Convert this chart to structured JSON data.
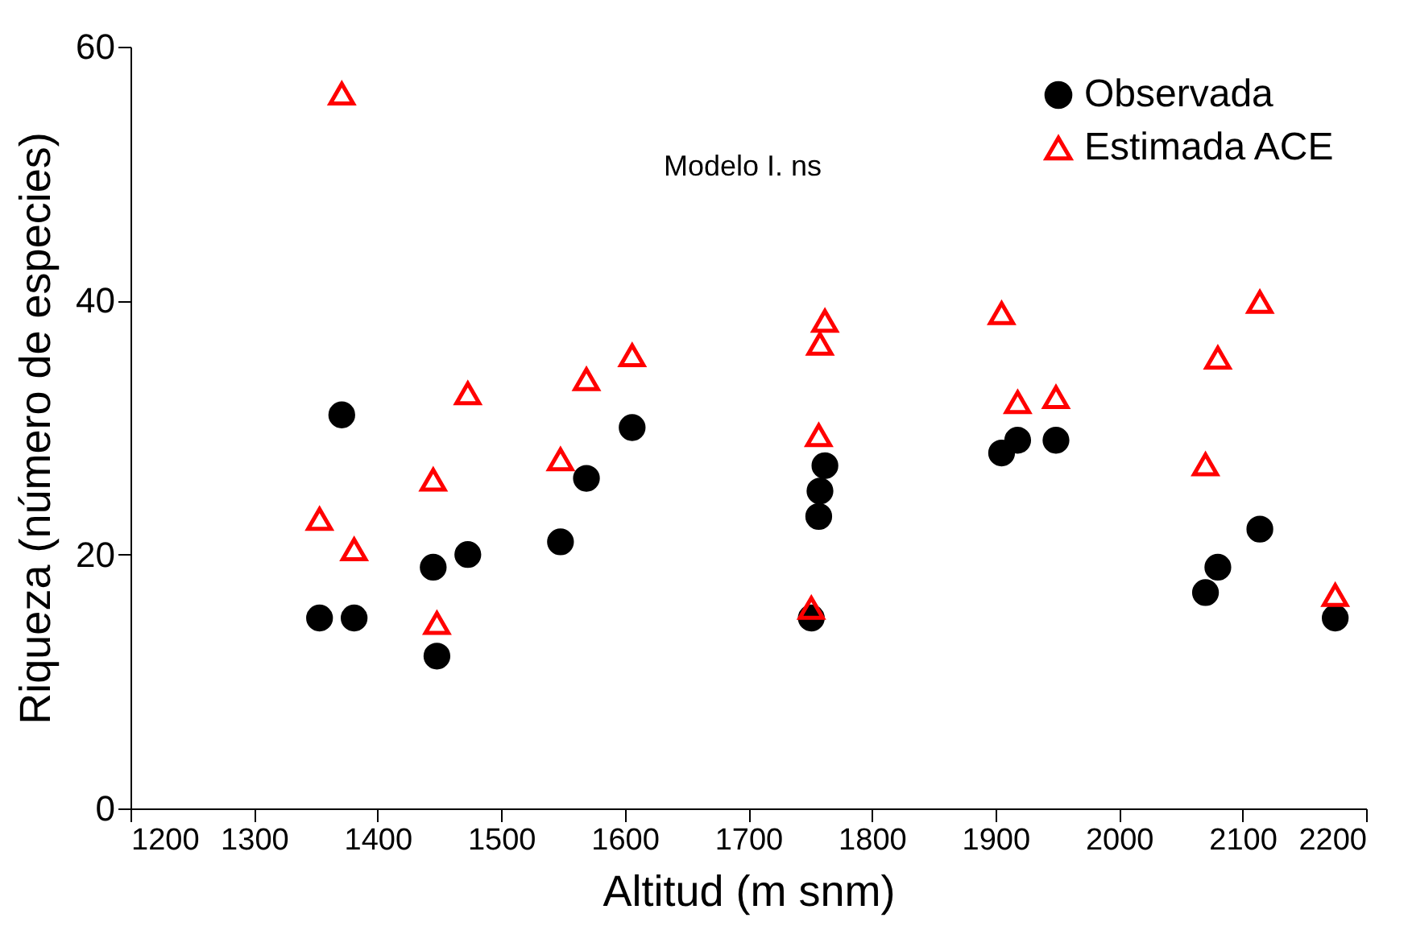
{
  "chart_data": {
    "type": "scatter",
    "xlabel": "Altitud (m snm)",
    "ylabel": "Riqueza (número de especies)",
    "annotations": [
      "Modelo I. ns"
    ],
    "series": [
      {
        "name": "Observada",
        "color": "#000000",
        "marker": "circle",
        "x": [
          1353,
          1371,
          1381,
          1445,
          1448,
          1473,
          1548,
          1569,
          1606,
          1751,
          1757,
          1758,
          1762,
          1905,
          1918,
          1949,
          2070,
          2080,
          2114,
          2175
        ],
        "values": [
          15,
          31,
          15,
          19,
          12,
          20,
          21,
          26,
          30,
          15,
          23,
          25,
          27,
          28,
          29,
          29,
          17,
          19,
          22,
          15
        ]
      },
      {
        "name": "Estimada ACE",
        "color": "#ff0000",
        "marker": "triangle",
        "x": [
          1353,
          1371,
          1381,
          1445,
          1448,
          1473,
          1548,
          1569,
          1606,
          1751,
          1757,
          1758,
          1762,
          1905,
          1918,
          1949,
          2070,
          2080,
          2114,
          2175
        ],
        "values": [
          22.8,
          56.3,
          20.4,
          25.9,
          14.6,
          32.7,
          27.5,
          33.8,
          35.7,
          15.8,
          29.4,
          36.6,
          38.4,
          39.0,
          32.0,
          32.4,
          27.1,
          35.5,
          39.9,
          16.8
        ]
      }
    ],
    "xlim": [
      1200,
      2200
    ],
    "xticks": [
      1200,
      1300,
      1400,
      1500,
      1600,
      1700,
      1800,
      1900,
      2000,
      2100,
      2200
    ],
    "ylim": [
      0,
      60
    ],
    "yticks": [
      0,
      20,
      40,
      60
    ],
    "grid": false,
    "legend": "top right"
  }
}
